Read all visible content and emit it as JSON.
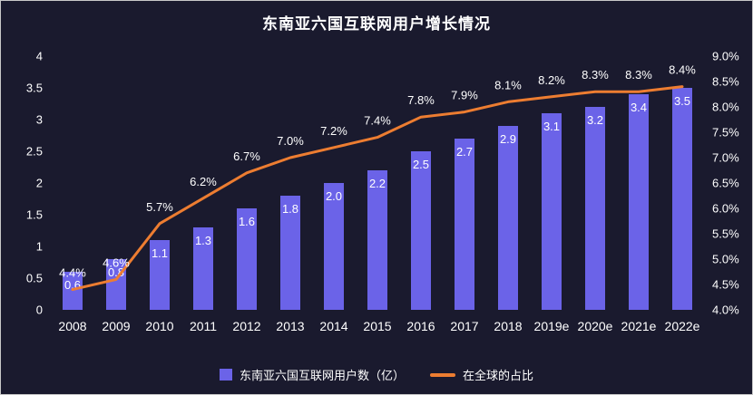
{
  "title": "东南亚六国互联网用户增长情况",
  "legend": {
    "bars": "东南亚六国互联网用户数（亿）",
    "line": "在全球的占比"
  },
  "colors": {
    "background": "#1A1A2E",
    "bar": "#6B63E8",
    "line": "#ED7D31",
    "text": "#FFFFFF"
  },
  "chart_data": {
    "type": "bar+line combo",
    "title": "东南亚六国互联网用户增长情况",
    "categories": [
      "2008",
      "2009",
      "2010",
      "2011",
      "2012",
      "2013",
      "2014",
      "2015",
      "2016",
      "2017",
      "2018",
      "2019e",
      "2020e",
      "2021e",
      "2022e"
    ],
    "series": [
      {
        "name": "东南亚六国互联网用户数（亿）",
        "type": "bar",
        "axis": "left",
        "values": [
          0.6,
          0.8,
          1.1,
          1.3,
          1.6,
          1.8,
          2.0,
          2.2,
          2.5,
          2.7,
          2.9,
          3.1,
          3.2,
          3.4,
          3.5
        ],
        "labels": [
          "0.6",
          "0.8",
          "1.1",
          "1.3",
          "1.6",
          "1.8",
          "2.0",
          "2.2",
          "2.5",
          "2.7",
          "2.9",
          "3.1",
          "3.2",
          "3.4",
          "3.5"
        ]
      },
      {
        "name": "在全球的占比",
        "type": "line",
        "axis": "right",
        "values": [
          4.4,
          4.6,
          5.7,
          6.2,
          6.7,
          7.0,
          7.2,
          7.4,
          7.8,
          7.9,
          8.1,
          8.2,
          8.3,
          8.3,
          8.4
        ],
        "labels": [
          "4.4%",
          "4.6%",
          "5.7%",
          "6.2%",
          "6.7%",
          "7.0%",
          "7.2%",
          "7.4%",
          "7.8%",
          "7.9%",
          "8.1%",
          "8.2%",
          "8.3%",
          "8.3%",
          "8.4%"
        ]
      }
    ],
    "left_axis": {
      "min": 0,
      "max": 4,
      "step": 0.5,
      "ticks": [
        "0",
        "0.5",
        "1",
        "1.5",
        "2",
        "2.5",
        "3",
        "3.5",
        "4"
      ]
    },
    "right_axis": {
      "min": 4,
      "max": 9,
      "step": 0.5,
      "ticks": [
        "4.0%",
        "4.5%",
        "5.0%",
        "5.5%",
        "6.0%",
        "6.5%",
        "7.0%",
        "7.5%",
        "8.0%",
        "8.5%",
        "9.0%"
      ]
    },
    "grid": false,
    "legend_position": "bottom"
  }
}
